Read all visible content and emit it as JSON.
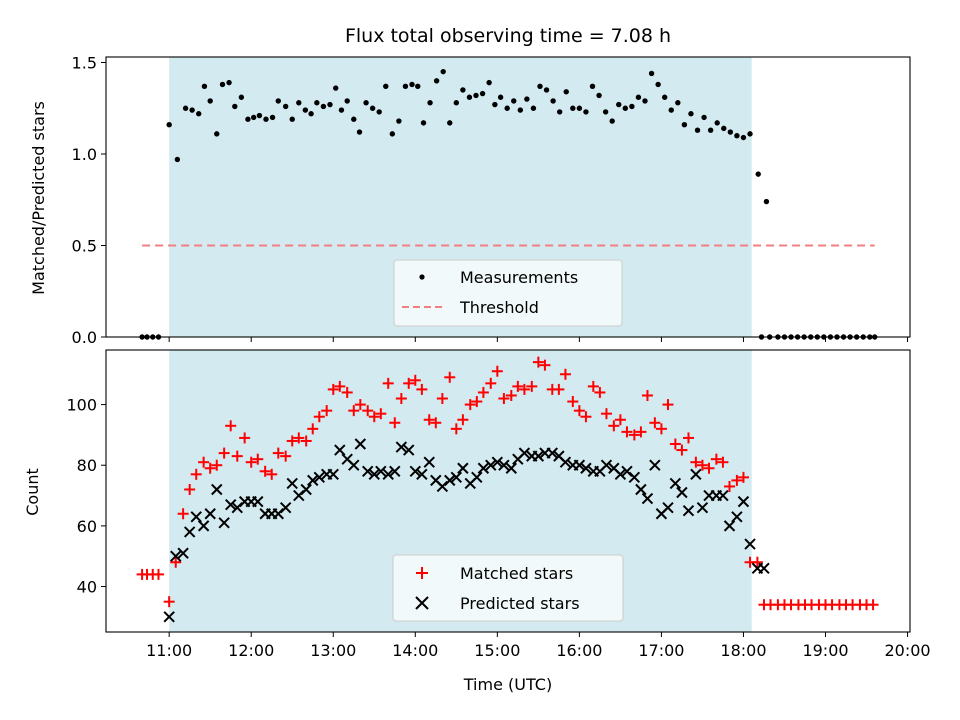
{
  "chart_data": [
    {
      "type": "scatter",
      "title": "Flux total observing time = 7.08 h",
      "ylabel": "Matched/Predicted stars",
      "xlabel": "",
      "xlim": [
        10.23,
        20.03
      ],
      "ylim": [
        0,
        1.53
      ],
      "observing_window": [
        11.0,
        18.1
      ],
      "window_color": "#d3eaf0",
      "x_ticks": [
        11,
        12,
        13,
        14,
        15,
        16,
        17,
        18,
        19,
        20
      ],
      "y_ticks": [
        0.0,
        0.5,
        1.0,
        1.5
      ],
      "y_tick_labels": [
        "0.0",
        "0.5",
        "1.0",
        "1.5"
      ],
      "legend_position": "lower center",
      "series": [
        {
          "name": "Measurements",
          "marker": "dot",
          "color": "#000000",
          "x": [
            10.67,
            10.73,
            10.8,
            10.87,
            11.0,
            11.1,
            11.2,
            11.28,
            11.36,
            11.43,
            11.5,
            11.58,
            11.65,
            11.73,
            11.8,
            11.88,
            11.96,
            12.03,
            12.1,
            12.18,
            12.26,
            12.33,
            12.42,
            12.5,
            12.58,
            12.66,
            12.73,
            12.8,
            12.88,
            12.96,
            13.03,
            13.1,
            13.17,
            13.25,
            13.32,
            13.4,
            13.48,
            13.56,
            13.64,
            13.72,
            13.8,
            13.88,
            13.96,
            14.03,
            14.1,
            14.18,
            14.26,
            14.34,
            14.42,
            14.5,
            14.58,
            14.66,
            14.74,
            14.82,
            14.9,
            14.97,
            15.04,
            15.12,
            15.2,
            15.28,
            15.36,
            15.44,
            15.52,
            15.6,
            15.68,
            15.76,
            15.84,
            15.92,
            16.0,
            16.08,
            16.16,
            16.24,
            16.32,
            16.4,
            16.48,
            16.56,
            16.64,
            16.72,
            16.8,
            16.88,
            16.96,
            17.04,
            17.12,
            17.2,
            17.28,
            17.36,
            17.44,
            17.52,
            17.6,
            17.68,
            17.76,
            17.84,
            17.92,
            18.0,
            18.08,
            18.18,
            18.28,
            18.22,
            18.32,
            18.42,
            18.5,
            18.58,
            18.66,
            18.74,
            18.82,
            18.9,
            18.98,
            19.06,
            19.14,
            19.22,
            19.3,
            19.38,
            19.46,
            19.54,
            19.6
          ],
          "y": [
            0.0,
            0.0,
            0.0,
            0.0,
            1.16,
            0.97,
            1.25,
            1.24,
            1.22,
            1.37,
            1.29,
            1.11,
            1.38,
            1.39,
            1.26,
            1.31,
            1.19,
            1.2,
            1.21,
            1.19,
            1.2,
            1.29,
            1.26,
            1.19,
            1.28,
            1.24,
            1.22,
            1.28,
            1.26,
            1.27,
            1.36,
            1.24,
            1.29,
            1.19,
            1.12,
            1.28,
            1.25,
            1.23,
            1.37,
            1.11,
            1.18,
            1.37,
            1.38,
            1.37,
            1.17,
            1.28,
            1.4,
            1.45,
            1.17,
            1.28,
            1.35,
            1.31,
            1.32,
            1.33,
            1.39,
            1.27,
            1.31,
            1.25,
            1.29,
            1.24,
            1.3,
            1.25,
            1.37,
            1.35,
            1.29,
            1.23,
            1.34,
            1.25,
            1.25,
            1.23,
            1.37,
            1.32,
            1.23,
            1.18,
            1.27,
            1.25,
            1.26,
            1.31,
            1.29,
            1.44,
            1.38,
            1.31,
            1.24,
            1.28,
            1.16,
            1.22,
            1.13,
            1.2,
            1.13,
            1.17,
            1.14,
            1.12,
            1.1,
            1.09,
            1.11,
            0.89,
            0.74,
            0.0,
            0.0,
            0.0,
            0.0,
            0.0,
            0.0,
            0.0,
            0.0,
            0.0,
            0.0,
            0.0,
            0.0,
            0.0,
            0.0,
            0.0,
            0.0,
            0.0,
            0.0
          ]
        },
        {
          "name": "Threshold",
          "marker": "dashed-line",
          "color": "#f08080",
          "x": [
            10.67,
            19.6
          ],
          "y": [
            0.5,
            0.5
          ]
        }
      ]
    },
    {
      "type": "scatter",
      "title": "",
      "ylabel": "Count",
      "xlabel": "Time (UTC)",
      "xlim": [
        10.23,
        20.03
      ],
      "ylim": [
        25,
        118
      ],
      "observing_window": [
        11.0,
        18.1
      ],
      "window_color": "#d3eaf0",
      "x_ticks": [
        11,
        12,
        13,
        14,
        15,
        16,
        17,
        18,
        19,
        20
      ],
      "x_tick_labels": [
        "11:00",
        "12:00",
        "13:00",
        "14:00",
        "15:00",
        "16:00",
        "17:00",
        "18:00",
        "19:00",
        "20:00"
      ],
      "y_ticks": [
        40,
        60,
        80,
        100
      ],
      "y_tick_labels": [
        "40",
        "60",
        "80",
        "100"
      ],
      "legend_position": "lower center",
      "series": [
        {
          "name": "Matched stars",
          "marker": "plus",
          "color": "#ff0000",
          "x": [
            10.67,
            10.73,
            10.8,
            10.87,
            11.0,
            11.08,
            11.17,
            11.25,
            11.33,
            11.42,
            11.5,
            11.58,
            11.67,
            11.75,
            11.83,
            11.92,
            12.0,
            12.08,
            12.17,
            12.25,
            12.33,
            12.42,
            12.5,
            12.58,
            12.67,
            12.75,
            12.83,
            12.92,
            13.0,
            13.08,
            13.17,
            13.25,
            13.33,
            13.42,
            13.5,
            13.58,
            13.67,
            13.75,
            13.83,
            13.92,
            14.0,
            14.08,
            14.17,
            14.25,
            14.33,
            14.42,
            14.5,
            14.58,
            14.67,
            14.75,
            14.83,
            14.92,
            15.0,
            15.08,
            15.17,
            15.25,
            15.33,
            15.42,
            15.5,
            15.58,
            15.67,
            15.75,
            15.83,
            15.92,
            16.0,
            16.08,
            16.17,
            16.25,
            16.33,
            16.42,
            16.5,
            16.58,
            16.67,
            16.75,
            16.83,
            16.92,
            17.0,
            17.08,
            17.17,
            17.25,
            17.33,
            17.42,
            17.5,
            17.58,
            17.67,
            17.75,
            17.83,
            17.92,
            18.0,
            18.08,
            18.17,
            18.25,
            18.33,
            18.42,
            18.5,
            18.58,
            18.67,
            18.75,
            18.83,
            18.92,
            19.0,
            19.08,
            19.17,
            19.25,
            19.33,
            19.42,
            19.5,
            19.58
          ],
          "y": [
            44,
            44,
            44,
            44,
            35,
            48,
            64,
            72,
            77,
            81,
            79,
            80,
            84,
            93,
            83,
            89,
            81,
            82,
            78,
            77,
            84,
            83,
            88,
            89,
            88,
            92,
            96,
            98,
            105,
            106,
            104,
            98,
            100,
            98,
            96,
            97,
            107,
            94,
            102,
            107,
            108,
            105,
            95,
            94,
            102,
            109,
            92,
            95,
            100,
            101,
            104,
            107,
            111,
            102,
            103,
            106,
            105,
            106,
            114,
            113,
            105,
            105,
            110,
            101,
            98,
            96,
            106,
            104,
            97,
            93,
            95,
            91,
            90,
            91,
            103,
            94,
            92,
            100,
            87,
            85,
            89,
            81,
            80,
            79,
            82,
            81,
            73,
            75,
            76,
            48,
            48,
            34,
            34,
            34,
            34,
            34,
            34,
            34,
            34,
            34,
            34,
            34,
            34,
            34,
            34,
            34,
            34,
            34
          ]
        },
        {
          "name": "Predicted stars",
          "marker": "x",
          "color": "#000000",
          "x": [
            11.0,
            11.08,
            11.17,
            11.25,
            11.33,
            11.42,
            11.5,
            11.58,
            11.67,
            11.75,
            11.83,
            11.92,
            12.0,
            12.08,
            12.17,
            12.25,
            12.33,
            12.42,
            12.5,
            12.58,
            12.67,
            12.75,
            12.83,
            12.92,
            13.0,
            13.08,
            13.17,
            13.25,
            13.33,
            13.42,
            13.5,
            13.58,
            13.67,
            13.75,
            13.83,
            13.92,
            14.0,
            14.08,
            14.17,
            14.25,
            14.33,
            14.42,
            14.5,
            14.58,
            14.67,
            14.75,
            14.83,
            14.92,
            15.0,
            15.08,
            15.17,
            15.25,
            15.33,
            15.42,
            15.5,
            15.58,
            15.67,
            15.75,
            15.83,
            15.92,
            16.0,
            16.08,
            16.17,
            16.25,
            16.33,
            16.42,
            16.5,
            16.58,
            16.67,
            16.75,
            16.83,
            16.92,
            17.0,
            17.08,
            17.17,
            17.25,
            17.33,
            17.42,
            17.5,
            17.58,
            17.67,
            17.75,
            17.83,
            17.92,
            18.0,
            18.08,
            18.17,
            18.25
          ],
          "y": [
            30,
            50,
            51,
            58,
            63,
            60,
            64,
            72,
            61,
            67,
            66,
            68,
            68,
            68,
            64,
            64,
            64,
            66,
            74,
            70,
            72,
            75,
            76,
            77,
            77,
            85,
            82,
            80,
            87,
            78,
            77,
            78,
            77,
            78,
            86,
            85,
            78,
            77,
            81,
            75,
            73,
            75,
            76,
            79,
            74,
            76,
            79,
            80,
            81,
            80,
            79,
            82,
            84,
            83,
            83,
            84,
            84,
            83,
            81,
            80,
            80,
            79,
            78,
            78,
            80,
            79,
            77,
            78,
            76,
            72,
            69,
            80,
            64,
            66,
            74,
            71,
            65,
            77,
            66,
            70,
            70,
            70,
            60,
            63,
            68,
            54,
            46,
            46
          ]
        }
      ]
    }
  ]
}
